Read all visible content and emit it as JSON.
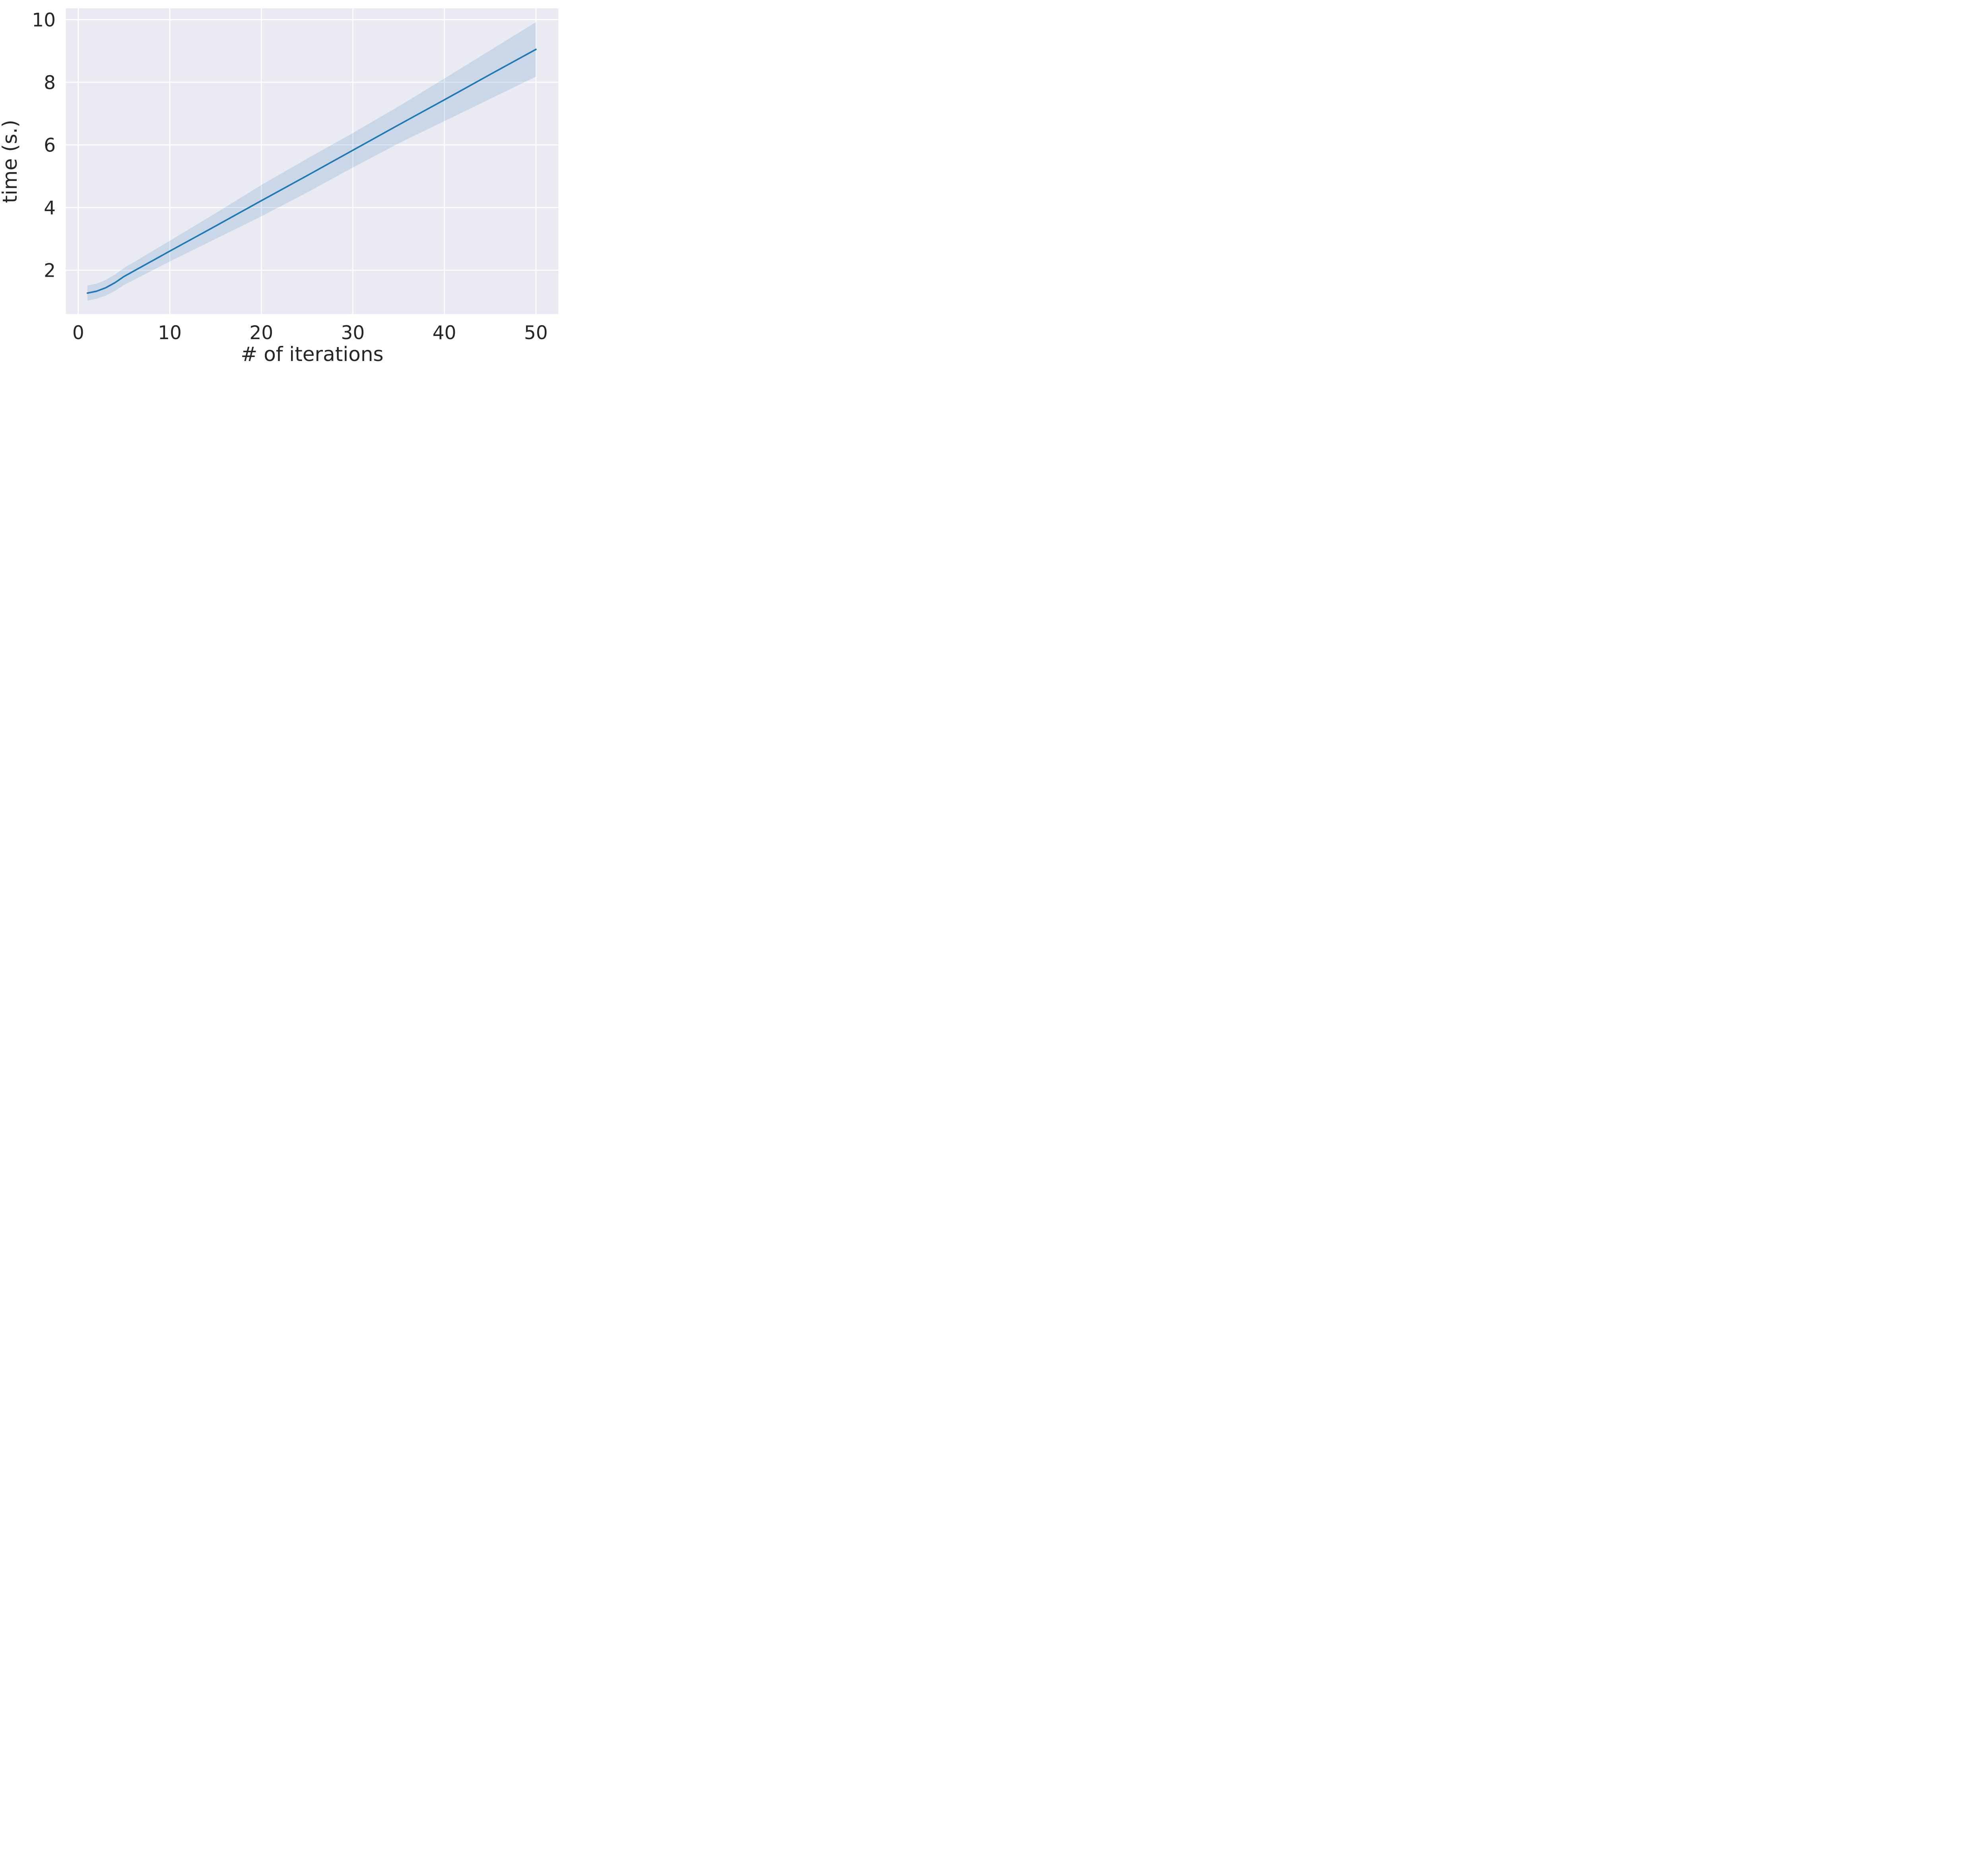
{
  "figure": {
    "background": "#ffffff",
    "plot_bg": "#eaeaf2",
    "grid_color": "#ffffff",
    "text_color": "#262626"
  },
  "chart_data": {
    "type": "line",
    "title": "",
    "xlabel": "# of iterations",
    "ylabel": "time (s.)",
    "x": [
      1,
      2,
      3,
      4,
      5,
      10,
      15,
      20,
      25,
      30,
      35,
      40,
      45,
      50
    ],
    "series": [
      {
        "name": "time",
        "color": "#1f77b4",
        "values": [
          1.27,
          1.33,
          1.44,
          1.6,
          1.8,
          2.61,
          3.41,
          4.22,
          5.02,
          5.83,
          6.64,
          7.44,
          8.25,
          9.05
        ]
      }
    ],
    "ci_lower": [
      1.03,
      1.09,
      1.19,
      1.34,
      1.53,
      2.28,
      3.0,
      3.72,
      4.48,
      5.28,
      6.05,
      6.76,
      7.47,
      8.18
    ],
    "ci_upper": [
      1.51,
      1.57,
      1.69,
      1.86,
      2.07,
      2.94,
      3.82,
      4.72,
      5.56,
      6.38,
      7.23,
      8.12,
      9.02,
      9.92
    ],
    "band_color": "rgba(31,119,180,0.16)",
    "xticks": {
      "values": [
        0,
        10,
        20,
        30,
        40,
        50
      ],
      "labels": [
        "0",
        "10",
        "20",
        "30",
        "40",
        "50"
      ]
    },
    "yticks": {
      "values": [
        2,
        4,
        6,
        8,
        10
      ],
      "labels": [
        "2",
        "4",
        "6",
        "8",
        "10"
      ]
    },
    "xlim": [
      -1.36,
      52.46
    ],
    "ylim": [
      0.6,
      10.36
    ],
    "grid": true,
    "legend": "none"
  }
}
